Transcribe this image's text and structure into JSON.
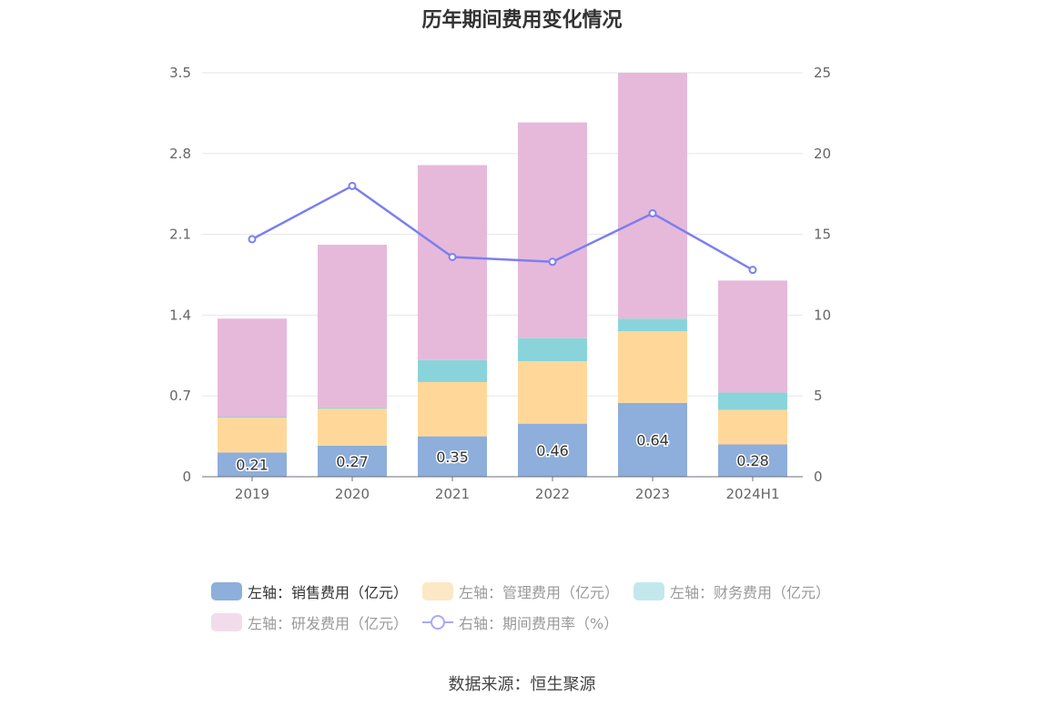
{
  "title": "历年期间费用变化情况",
  "source": "数据来源：恒生聚源",
  "chart_data": {
    "type": "bar",
    "stacked": true,
    "categories": [
      "2019",
      "2020",
      "2021",
      "2022",
      "2023",
      "2024H1"
    ],
    "left_axis": {
      "ylim": [
        0,
        3.5
      ],
      "ticks": [
        "0",
        "0.7",
        "1.4",
        "2.1",
        "2.8",
        "3.5"
      ]
    },
    "right_axis": {
      "ylim": [
        0,
        25
      ],
      "ticks": [
        "0",
        "5",
        "10",
        "15",
        "20",
        "25"
      ]
    },
    "grid": true,
    "legend_position": "bottom",
    "series": [
      {
        "name": "左轴：销售费用（亿元）",
        "axis": "left",
        "type": "bar",
        "color": "#8eaedb",
        "values": [
          0.21,
          0.27,
          0.35,
          0.46,
          0.64,
          0.28
        ],
        "labels": [
          "0.21",
          "0.27",
          "0.35",
          "0.46",
          "0.64",
          "0.28"
        ]
      },
      {
        "name": "左轴：管理费用（亿元）",
        "axis": "left",
        "type": "bar",
        "color": "#ffd899",
        "values": [
          0.3,
          0.32,
          0.47,
          0.54,
          0.62,
          0.3
        ]
      },
      {
        "name": "左轴：财务费用（亿元）",
        "axis": "left",
        "type": "bar",
        "color": "#89d4da",
        "values": [
          0.01,
          0.01,
          0.19,
          0.2,
          0.11,
          0.15
        ]
      },
      {
        "name": "左轴：研发费用（亿元）",
        "axis": "left",
        "type": "bar",
        "color": "#e6b9da",
        "values": [
          0.85,
          1.41,
          1.69,
          1.87,
          2.13,
          0.97
        ]
      },
      {
        "name": "右轴：期间费用率（%）",
        "axis": "right",
        "type": "line",
        "color": "#7b7ff0",
        "values": [
          14.7,
          18.0,
          13.6,
          13.3,
          16.3,
          12.8
        ]
      }
    ]
  }
}
